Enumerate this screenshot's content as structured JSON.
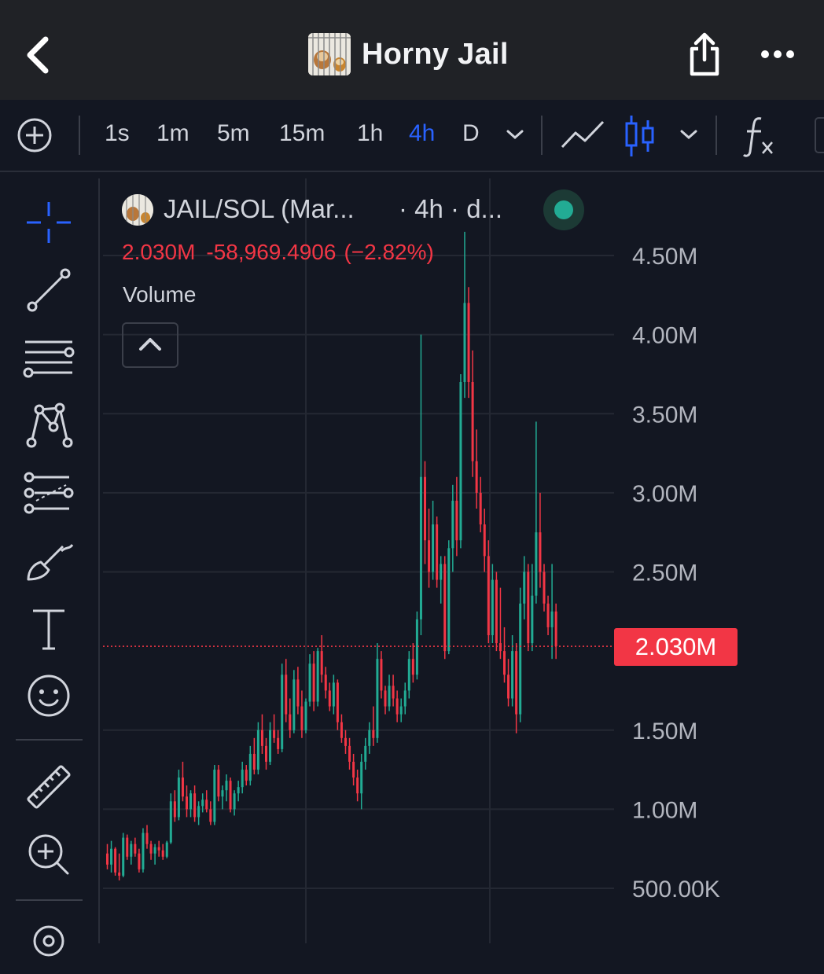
{
  "header": {
    "title": "Horny Jail",
    "back_icon": "chevron-left-icon",
    "share_icon": "share-icon",
    "more_icon": "more-horizontal-icon"
  },
  "toolbar": {
    "intervals": [
      "1s",
      "1m",
      "5m",
      "15m",
      "1h",
      "4h",
      "D"
    ],
    "active_interval": "4h",
    "icons": [
      "add-circle-icon",
      "chevron-down-icon",
      "line-chart-icon",
      "candlestick-icon",
      "chevron-down-icon",
      "indicators-fx-icon"
    ]
  },
  "sidebar": {
    "tools": [
      "crosshair-icon",
      "trend-line-icon",
      "horizontal-lines-icon",
      "pattern-icon",
      "forecast-icon",
      "brush-icon",
      "text-tool-icon",
      "emoji-icon",
      "ruler-icon",
      "zoom-in-icon",
      "magnet-icon"
    ]
  },
  "legend": {
    "symbol": "JAIL/SOL (Mar...",
    "timeframe": "· 4h · d...",
    "last": "2.030M",
    "change": "-58,969.4906",
    "change_pct": "(−2.82%)",
    "volume_label": "Volume"
  },
  "price_tag": "2.030M",
  "colors": {
    "up": "#22ab94",
    "down": "#f23645",
    "active": "#2962ff",
    "background": "#131722"
  },
  "chart_data": {
    "type": "candlestick",
    "y_axis_labels": [
      "4.50M",
      "4.00M",
      "3.50M",
      "3.00M",
      "2.50M",
      "1.50M",
      "1.00M",
      "500.00K"
    ],
    "y_ticks": [
      4500000,
      4000000,
      3500000,
      3000000,
      2500000,
      1500000,
      1000000,
      500000
    ],
    "ylim": [
      350000,
      4650000
    ],
    "last_price": 2030000,
    "grid": true,
    "candles": [
      [
        0.72,
        0.78,
        0.62,
        0.65
      ],
      [
        0.65,
        0.8,
        0.6,
        0.75
      ],
      [
        0.75,
        0.76,
        0.58,
        0.6
      ],
      [
        0.6,
        0.72,
        0.55,
        0.58
      ],
      [
        0.58,
        0.85,
        0.57,
        0.82
      ],
      [
        0.82,
        0.84,
        0.68,
        0.7
      ],
      [
        0.7,
        0.8,
        0.65,
        0.78
      ],
      [
        0.78,
        0.82,
        0.7,
        0.72
      ],
      [
        0.72,
        0.75,
        0.6,
        0.62
      ],
      [
        0.62,
        0.88,
        0.6,
        0.85
      ],
      [
        0.85,
        0.9,
        0.75,
        0.78
      ],
      [
        0.78,
        0.8,
        0.68,
        0.72
      ],
      [
        0.72,
        0.78,
        0.65,
        0.76
      ],
      [
        0.76,
        0.8,
        0.7,
        0.74
      ],
      [
        0.74,
        0.78,
        0.68,
        0.7
      ],
      [
        0.7,
        0.8,
        0.69,
        0.79
      ],
      [
        0.79,
        1.1,
        0.78,
        1.05
      ],
      [
        1.05,
        1.12,
        0.92,
        0.95
      ],
      [
        0.95,
        1.25,
        0.93,
        1.2
      ],
      [
        1.2,
        1.3,
        1.05,
        1.08
      ],
      [
        1.08,
        1.15,
        0.95,
        1.0
      ],
      [
        1.0,
        1.12,
        0.95,
        1.1
      ],
      [
        1.1,
        1.15,
        0.92,
        0.95
      ],
      [
        0.95,
        1.05,
        0.9,
        1.02
      ],
      [
        1.02,
        1.1,
        0.98,
        1.06
      ],
      [
        1.06,
        1.12,
        0.98,
        1.0
      ],
      [
        1.0,
        1.05,
        0.9,
        0.92
      ],
      [
        0.92,
        1.28,
        0.9,
        1.25
      ],
      [
        1.25,
        1.28,
        1.05,
        1.08
      ],
      [
        1.08,
        1.15,
        1.0,
        1.12
      ],
      [
        1.12,
        1.22,
        1.05,
        1.18
      ],
      [
        1.18,
        1.2,
        0.98,
        1.0
      ],
      [
        1.0,
        1.12,
        0.96,
        1.1
      ],
      [
        1.1,
        1.18,
        1.05,
        1.14
      ],
      [
        1.14,
        1.3,
        1.1,
        1.25
      ],
      [
        1.25,
        1.28,
        1.15,
        1.18
      ],
      [
        1.18,
        1.4,
        1.15,
        1.35
      ],
      [
        1.35,
        1.45,
        1.22,
        1.25
      ],
      [
        1.25,
        1.55,
        1.22,
        1.5
      ],
      [
        1.5,
        1.6,
        1.35,
        1.4
      ],
      [
        1.4,
        1.45,
        1.25,
        1.3
      ],
      [
        1.3,
        1.55,
        1.28,
        1.5
      ],
      [
        1.5,
        1.6,
        1.42,
        1.45
      ],
      [
        1.45,
        1.5,
        1.35,
        1.38
      ],
      [
        1.38,
        1.92,
        1.36,
        1.85
      ],
      [
        1.85,
        1.95,
        1.55,
        1.6
      ],
      [
        1.6,
        1.7,
        1.45,
        1.5
      ],
      [
        1.5,
        1.88,
        1.48,
        1.82
      ],
      [
        1.82,
        1.9,
        1.6,
        1.65
      ],
      [
        1.65,
        1.75,
        1.45,
        1.5
      ],
      [
        1.5,
        1.7,
        1.48,
        1.68
      ],
      [
        1.68,
        1.98,
        1.65,
        1.92
      ],
      [
        1.92,
        2.0,
        1.62,
        1.68
      ],
      [
        1.68,
        2.02,
        1.65,
        2.0
      ],
      [
        2.0,
        2.1,
        1.8,
        1.85
      ],
      [
        1.85,
        1.9,
        1.7,
        1.75
      ],
      [
        1.75,
        1.8,
        1.62,
        1.65
      ],
      [
        1.65,
        1.85,
        1.6,
        1.8
      ],
      [
        1.8,
        1.82,
        1.5,
        1.55
      ],
      [
        1.55,
        1.6,
        1.42,
        1.45
      ],
      [
        1.45,
        1.5,
        1.35,
        1.4
      ],
      [
        1.4,
        1.45,
        1.25,
        1.3
      ],
      [
        1.3,
        1.35,
        1.15,
        1.2
      ],
      [
        1.2,
        1.25,
        1.05,
        1.1
      ],
      [
        1.1,
        1.35,
        1.0,
        1.3
      ],
      [
        1.3,
        1.45,
        1.25,
        1.4
      ],
      [
        1.4,
        1.55,
        1.35,
        1.5
      ],
      [
        1.5,
        1.65,
        1.4,
        1.45
      ],
      [
        1.45,
        2.05,
        1.42,
        1.95
      ],
      [
        1.95,
        2.0,
        1.7,
        1.75
      ],
      [
        1.75,
        1.78,
        1.6,
        1.65
      ],
      [
        1.65,
        1.85,
        1.62,
        1.78
      ],
      [
        1.78,
        1.85,
        1.65,
        1.7
      ],
      [
        1.7,
        1.75,
        1.55,
        1.6
      ],
      [
        1.6,
        1.7,
        1.55,
        1.65
      ],
      [
        1.65,
        1.8,
        1.6,
        1.75
      ],
      [
        1.75,
        2.0,
        1.7,
        1.95
      ],
      [
        1.95,
        2.05,
        1.8,
        1.85
      ],
      [
        1.85,
        2.25,
        1.82,
        2.2
      ],
      [
        2.2,
        4.0,
        2.1,
        3.1
      ],
      [
        3.1,
        3.2,
        2.55,
        2.7
      ],
      [
        2.7,
        2.9,
        2.4,
        2.5
      ],
      [
        2.5,
        2.95,
        2.45,
        2.8
      ],
      [
        2.8,
        2.85,
        2.4,
        2.45
      ],
      [
        2.45,
        2.6,
        2.3,
        2.55
      ],
      [
        2.55,
        2.6,
        1.95,
        2.0
      ],
      [
        2.0,
        2.7,
        1.98,
        2.65
      ],
      [
        2.65,
        3.05,
        2.5,
        2.95
      ],
      [
        2.95,
        3.1,
        2.6,
        2.7
      ],
      [
        2.7,
        3.75,
        2.65,
        3.7
      ],
      [
        3.7,
        4.65,
        3.6,
        4.2
      ],
      [
        4.2,
        4.3,
        3.6,
        3.7
      ],
      [
        3.7,
        3.9,
        3.1,
        3.2
      ],
      [
        3.2,
        3.4,
        2.9,
        3.0
      ],
      [
        3.0,
        3.1,
        2.75,
        2.8
      ],
      [
        2.8,
        2.9,
        2.5,
        2.6
      ],
      [
        2.6,
        2.7,
        2.05,
        2.1
      ],
      [
        2.1,
        2.55,
        2.05,
        2.45
      ],
      [
        2.45,
        2.5,
        2.0,
        2.05
      ],
      [
        2.05,
        2.4,
        1.95,
        2.0
      ],
      [
        2.0,
        2.15,
        1.8,
        1.85
      ],
      [
        1.85,
        1.95,
        1.65,
        1.7
      ],
      [
        1.7,
        2.1,
        1.65,
        2.0
      ],
      [
        2.0,
        2.05,
        1.48,
        1.6
      ],
      [
        1.6,
        2.4,
        1.55,
        2.3
      ],
      [
        2.3,
        2.6,
        2.2,
        2.5
      ],
      [
        2.5,
        2.55,
        2.0,
        2.05
      ],
      [
        2.05,
        2.55,
        2.0,
        2.35
      ],
      [
        2.35,
        3.45,
        2.3,
        2.75
      ],
      [
        2.75,
        3.0,
        2.4,
        2.5
      ],
      [
        2.5,
        2.55,
        2.25,
        2.3
      ],
      [
        2.3,
        2.35,
        2.1,
        2.15
      ],
      [
        2.15,
        2.55,
        1.95,
        2.25
      ],
      [
        2.25,
        2.3,
        1.95,
        2.03
      ]
    ]
  }
}
